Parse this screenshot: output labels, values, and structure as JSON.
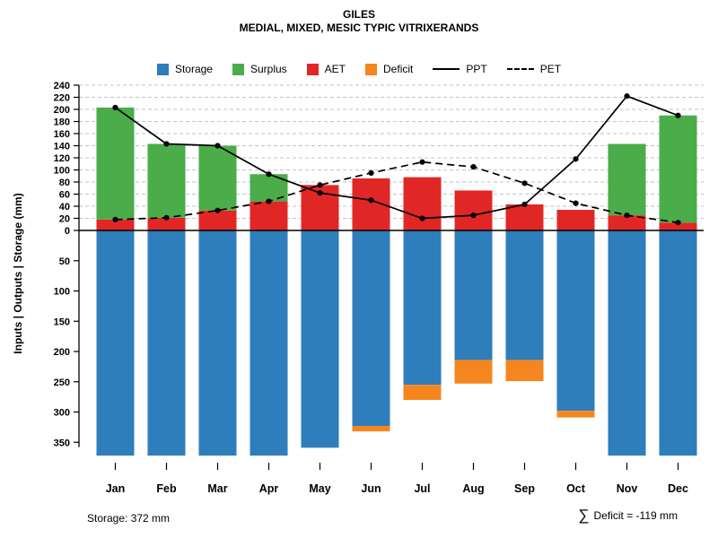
{
  "title": "GILES",
  "subtitle": "MEDIAL, MIXED, MESIC TYPIC VITRIXERANDS",
  "footer": {
    "storage_note": "Storage: 372 mm",
    "deficit_sigma": "∑",
    "deficit_text": "Deficit = -119 mm"
  },
  "chart_data": {
    "type": "bar",
    "title": "GILES",
    "subtitle": "MEDIAL, MIXED, MESIC TYPIC VITRIXERANDS",
    "ylabel": "Inputs | Outputs | Storage  (mm)",
    "categories": [
      "Jan",
      "Feb",
      "Mar",
      "Apr",
      "May",
      "Jun",
      "Jul",
      "Aug",
      "Sep",
      "Oct",
      "Nov",
      "Dec"
    ],
    "upper_axis": {
      "min": 0,
      "max": 240,
      "step": 20
    },
    "lower_axis": {
      "min": 0,
      "max": 350,
      "step": 50,
      "direction": "down"
    },
    "grid": "upper-dashed-horizontal",
    "legend_position": "top",
    "series": [
      {
        "name": "Storage",
        "type": "bar-down",
        "color": "#2e7ebc",
        "values": [
          372,
          372,
          372,
          372,
          359,
          323,
          255,
          214,
          214,
          298,
          372,
          372
        ]
      },
      {
        "name": "Surplus",
        "type": "bar-up",
        "color": "#4aad4a",
        "values": [
          185,
          122,
          107,
          45,
          0,
          0,
          0,
          0,
          0,
          0,
          118,
          177
        ]
      },
      {
        "name": "AET",
        "type": "bar-up",
        "color": "#e12726",
        "values": [
          18,
          21,
          33,
          48,
          75,
          86,
          88,
          66,
          43,
          34,
          25,
          13
        ]
      },
      {
        "name": "Deficit",
        "type": "bar-down",
        "color": "#f5861f",
        "values": [
          0,
          0,
          0,
          0,
          0,
          9,
          25,
          39,
          35,
          11,
          0,
          0
        ]
      },
      {
        "name": "PPT",
        "type": "line",
        "style": "solid",
        "color": "#000000",
        "values": [
          203,
          143,
          140,
          93,
          62,
          50,
          20,
          25,
          43,
          118,
          222,
          190
        ]
      },
      {
        "name": "PET",
        "type": "line",
        "style": "dashed",
        "color": "#000000",
        "values": [
          18,
          21,
          33,
          48,
          75,
          95,
          113,
          105,
          78,
          45,
          25,
          13
        ]
      }
    ],
    "annotations": {
      "storage": "Storage: 372 mm",
      "deficit_sum": "∑ Deficit = -119 mm"
    }
  }
}
